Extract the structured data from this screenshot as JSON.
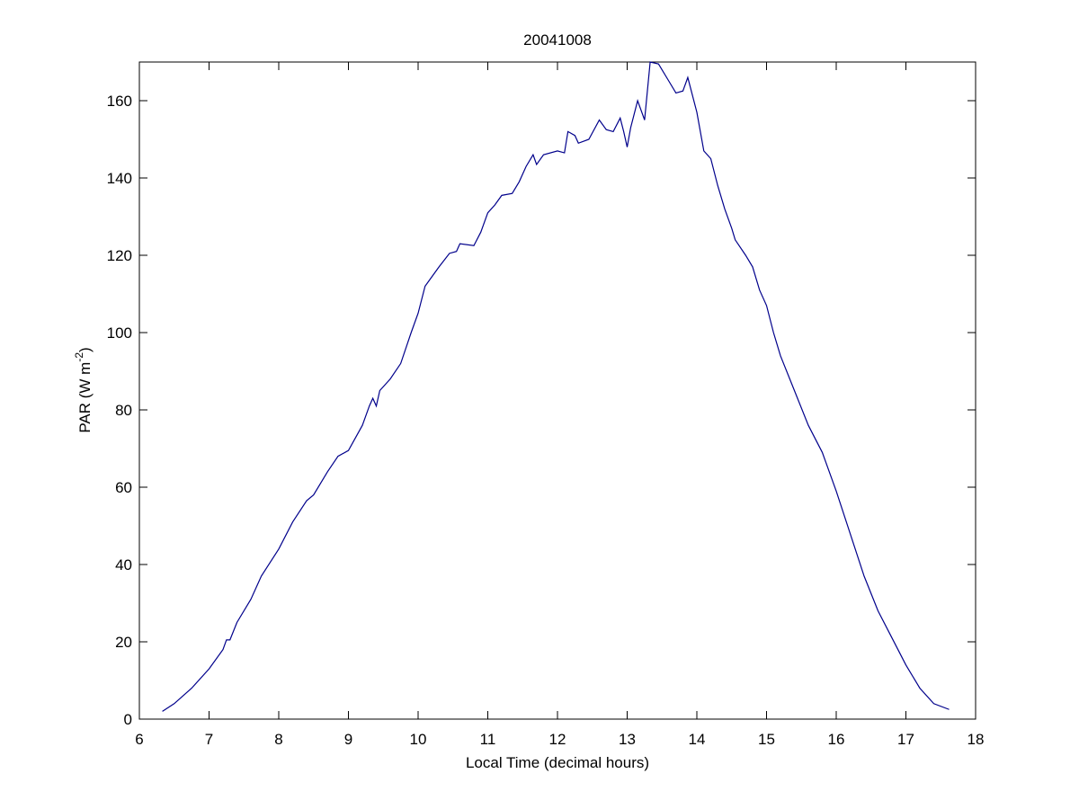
{
  "chart_data": {
    "type": "line",
    "title": "20041008",
    "xlabel": "Local Time (decimal hours)",
    "ylabel": [
      "PAR (W m",
      "-2",
      ")"
    ],
    "x": [
      6.33,
      6.5,
      6.75,
      7.0,
      7.2,
      7.25,
      7.3,
      7.4,
      7.6,
      7.75,
      8.0,
      8.2,
      8.4,
      8.5,
      8.7,
      8.85,
      9.0,
      9.2,
      9.3,
      9.35,
      9.4,
      9.45,
      9.6,
      9.75,
      9.9,
      10.0,
      10.1,
      10.2,
      10.3,
      10.45,
      10.55,
      10.6,
      10.8,
      10.9,
      11.0,
      11.1,
      11.2,
      11.35,
      11.45,
      11.55,
      11.65,
      11.7,
      11.8,
      12.0,
      12.1,
      12.15,
      12.25,
      12.3,
      12.45,
      12.6,
      12.7,
      12.8,
      12.9,
      12.95,
      13.0,
      13.05,
      13.15,
      13.25,
      13.33,
      13.45,
      13.6,
      13.7,
      13.8,
      13.87,
      14.0,
      14.1,
      14.2,
      14.3,
      14.4,
      14.5,
      14.55,
      14.7,
      14.8,
      14.9,
      15.0,
      15.1,
      15.2,
      15.4,
      15.6,
      15.8,
      16.0,
      16.2,
      16.4,
      16.6,
      16.8,
      17.0,
      17.2,
      17.4,
      17.62
    ],
    "series": [
      {
        "name": "PAR",
        "color": "#00008b",
        "values": [
          2,
          4,
          8,
          13,
          18,
          20.5,
          20.5,
          25,
          31,
          37,
          44,
          51,
          56.5,
          58,
          64,
          68,
          69.5,
          76,
          81,
          83,
          81,
          85,
          88,
          92,
          100,
          105,
          112,
          114.5,
          117,
          120.5,
          121,
          123,
          122.5,
          126,
          131,
          133,
          135.5,
          136,
          139,
          143,
          146,
          143.5,
          146,
          147,
          146.5,
          152,
          151,
          149,
          150,
          155,
          152.5,
          152,
          155.5,
          152,
          148,
          153,
          160,
          155,
          170,
          169.5,
          165,
          162,
          162.5,
          166,
          157,
          147,
          145,
          138,
          132,
          127,
          124,
          120,
          117,
          111,
          107,
          100,
          94,
          85,
          76,
          69,
          59,
          48,
          37,
          28,
          21,
          14,
          8,
          4,
          2.5
        ]
      }
    ],
    "xlim": [
      6,
      18
    ],
    "xticks": [
      6,
      7,
      8,
      9,
      10,
      11,
      12,
      13,
      14,
      15,
      16,
      17,
      18
    ],
    "ylim": [
      0,
      170
    ],
    "yticks": [
      0,
      20,
      40,
      60,
      80,
      100,
      120,
      140,
      160
    ],
    "grid": false
  }
}
